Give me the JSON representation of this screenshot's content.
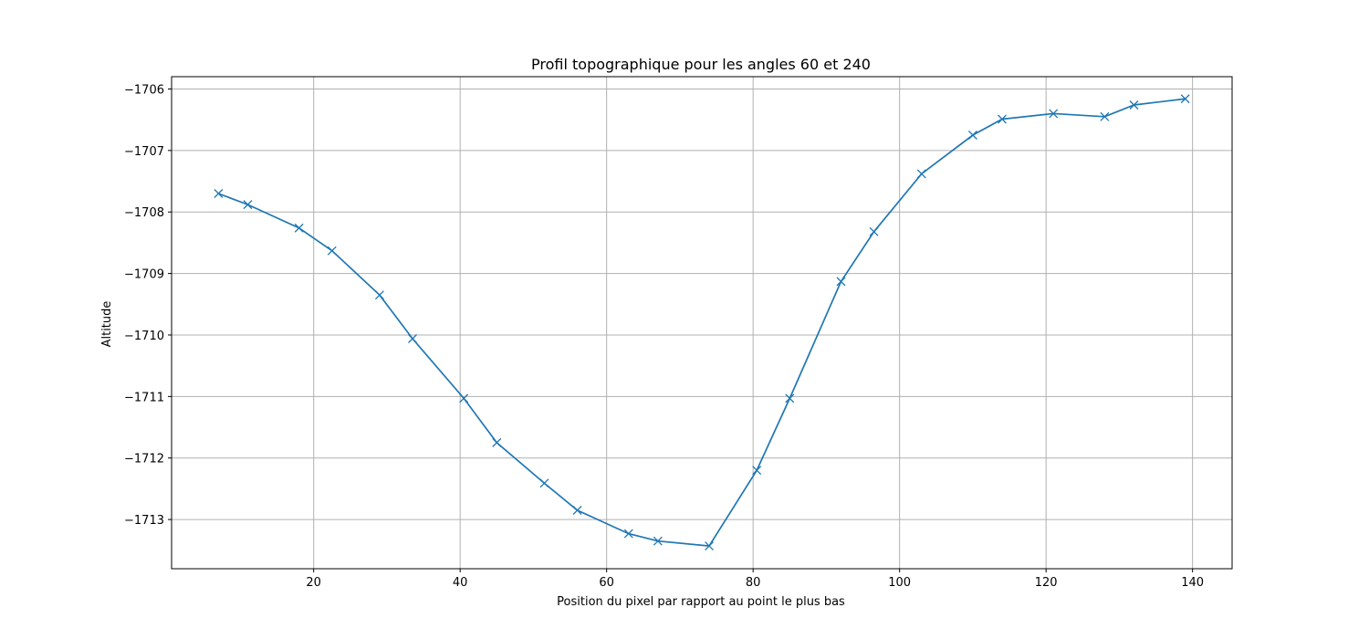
{
  "chart_data": {
    "type": "line",
    "title": "Profil topographique pour les angles 60 et 240",
    "xlabel": "Position du pixel par rapport au point le plus bas",
    "ylabel": "Altitude",
    "xlim": [
      0.6,
      145.4
    ],
    "ylim": [
      -1713.8,
      -1705.8
    ],
    "xticks": [
      20,
      40,
      60,
      80,
      100,
      120,
      140
    ],
    "xtick_labels": [
      "20",
      "40",
      "60",
      "80",
      "100",
      "120",
      "140"
    ],
    "yticks": [
      -1713,
      -1712,
      -1711,
      -1710,
      -1709,
      -1708,
      -1707,
      -1706
    ],
    "ytick_labels": [
      "−1713",
      "−1712",
      "−1711",
      "−1710",
      "−1709",
      "−1708",
      "−1707",
      "−1706"
    ],
    "grid": true,
    "marker": "x",
    "color": "#1f77b4",
    "series": [
      {
        "x": [
          7,
          11,
          18,
          22.5,
          29,
          33.5,
          40.5,
          45,
          51.5,
          56,
          63,
          67,
          74,
          80.5,
          85,
          92,
          96.5,
          103,
          110,
          114,
          121,
          128,
          132,
          139
        ],
        "values": [
          -1707.7,
          -1707.88,
          -1708.26,
          -1708.63,
          -1709.35,
          -1710.06,
          -1711.03,
          -1711.75,
          -1712.41,
          -1712.85,
          -1713.23,
          -1713.35,
          -1713.43,
          -1712.2,
          -1711.03,
          -1709.13,
          -1708.32,
          -1707.38,
          -1706.75,
          -1706.49,
          -1706.4,
          -1706.45,
          -1706.26,
          -1706.16
        ]
      }
    ]
  }
}
